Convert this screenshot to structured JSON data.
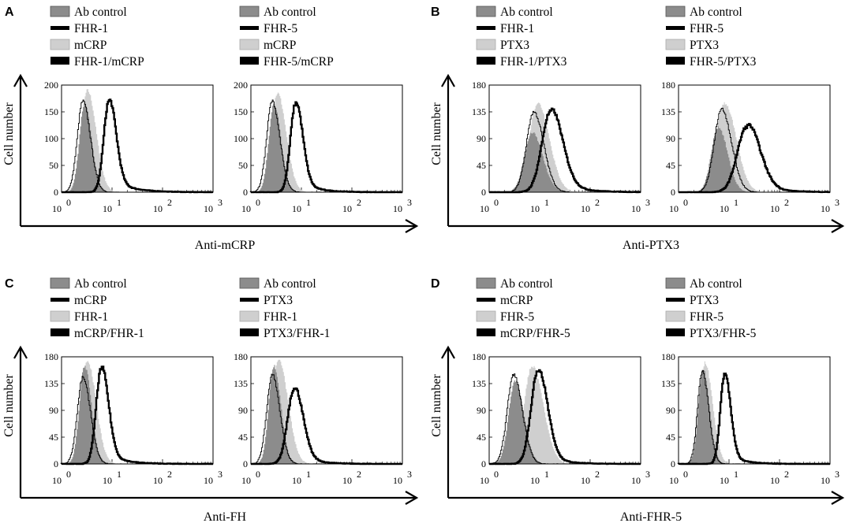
{
  "figure": {
    "y_axis_label": "Cell number",
    "ab_control_color": "#8c8c8c",
    "single_color": "#cfcfcf",
    "line_color": "#000000"
  },
  "chart_data": [
    {
      "panel": "A",
      "type": "histogram",
      "xlabel": "Anti-mCRP",
      "ylabel": "Cell number",
      "plots": [
        {
          "legend": [
            "Ab control",
            "FHR-1",
            "mCRP",
            "FHR-1/mCRP"
          ],
          "x_scale": "log",
          "xlim": [
            1,
            1000
          ],
          "ylim": [
            0,
            200
          ],
          "yticks": [
            "0",
            "50",
            "100",
            "150",
            "200"
          ],
          "xtick_exponents": [
            "0",
            "1",
            "2",
            "3"
          ],
          "series": [
            {
              "name": "Ab control",
              "style": "filled",
              "peak_x": 2.8,
              "peak_y": 165,
              "width": 0.12
            },
            {
              "name": "FHR-1",
              "style": "thin line",
              "peak_x": 2.6,
              "peak_y": 170,
              "width": 0.13
            },
            {
              "name": "mCRP",
              "style": "filled",
              "peak_x": 3.2,
              "peak_y": 190,
              "width": 0.15
            },
            {
              "name": "FHR-1/mCRP",
              "style": "thick line",
              "peak_x": 8.5,
              "peak_y": 170,
              "width": 0.12,
              "tail": 0.35
            }
          ]
        },
        {
          "legend": [
            "Ab control",
            "FHR-5",
            "mCRP",
            "FHR-5/mCRP"
          ],
          "x_scale": "log",
          "xlim": [
            1,
            1000
          ],
          "ylim": [
            0,
            200
          ],
          "yticks": [
            "0",
            "50",
            "100",
            "150",
            "200"
          ],
          "xtick_exponents": [
            "0",
            "1",
            "2",
            "3"
          ],
          "series": [
            {
              "name": "Ab control",
              "style": "filled",
              "peak_x": 2.8,
              "peak_y": 165,
              "width": 0.12
            },
            {
              "name": "FHR-5",
              "style": "thin line",
              "peak_x": 2.6,
              "peak_y": 170,
              "width": 0.13
            },
            {
              "name": "mCRP",
              "style": "filled",
              "peak_x": 3.3,
              "peak_y": 185,
              "width": 0.15
            },
            {
              "name": "FHR-5/mCRP",
              "style": "thick line",
              "peak_x": 7.5,
              "peak_y": 165,
              "width": 0.12,
              "tail": 0.3
            }
          ]
        }
      ]
    },
    {
      "panel": "B",
      "type": "histogram",
      "xlabel": "Anti-PTX3",
      "ylabel": "Cell number",
      "plots": [
        {
          "legend": [
            "Ab control",
            "FHR-1",
            "PTX3",
            "FHR-1/PTX3"
          ],
          "x_scale": "log",
          "xlim": [
            1,
            1000
          ],
          "ylim": [
            0,
            180
          ],
          "yticks": [
            "0",
            "45",
            "90",
            "135",
            "180"
          ],
          "xtick_exponents": [
            "0",
            "1",
            "2",
            "3"
          ],
          "series": [
            {
              "name": "Ab control",
              "style": "filled",
              "peak_x": 7,
              "peak_y": 100,
              "width": 0.18
            },
            {
              "name": "FHR-1",
              "style": "thin line",
              "peak_x": 7.5,
              "peak_y": 135,
              "width": 0.17
            },
            {
              "name": "PTX3",
              "style": "filled",
              "peak_x": 9,
              "peak_y": 150,
              "width": 0.2
            },
            {
              "name": "FHR-1/PTX3",
              "style": "thick line",
              "peak_x": 16,
              "peak_y": 135,
              "width": 0.2,
              "tail": 0.4
            }
          ]
        },
        {
          "legend": [
            "Ab control",
            "FHR-5",
            "PTX3",
            "FHR-5/PTX3"
          ],
          "x_scale": "log",
          "xlim": [
            1,
            1000
          ],
          "ylim": [
            0,
            180
          ],
          "yticks": [
            "0",
            "45",
            "90",
            "135",
            "180"
          ],
          "xtick_exponents": [
            "0",
            "1",
            "2",
            "3"
          ],
          "series": [
            {
              "name": "Ab control",
              "style": "filled",
              "peak_x": 6,
              "peak_y": 110,
              "width": 0.16
            },
            {
              "name": "FHR-5",
              "style": "thin line",
              "peak_x": 7,
              "peak_y": 140,
              "width": 0.17
            },
            {
              "name": "PTX3",
              "style": "filled",
              "peak_x": 8,
              "peak_y": 150,
              "width": 0.2
            },
            {
              "name": "FHR-5/PTX3",
              "style": "thick line",
              "peak_x": 22,
              "peak_y": 110,
              "width": 0.22,
              "tail": 0.4
            }
          ]
        }
      ]
    },
    {
      "panel": "C",
      "type": "histogram",
      "xlabel": "Anti-FH",
      "ylabel": "Cell number",
      "plots": [
        {
          "legend": [
            "Ab control",
            "mCRP",
            "FHR-1",
            "mCRP/FHR-1"
          ],
          "x_scale": "log",
          "xlim": [
            1,
            1000
          ],
          "ylim": [
            0,
            180
          ],
          "yticks": [
            "0",
            "45",
            "90",
            "135",
            "180"
          ],
          "xtick_exponents": [
            "0",
            "1",
            "2",
            "3"
          ],
          "series": [
            {
              "name": "Ab control",
              "style": "filled",
              "peak_x": 2.8,
              "peak_y": 165,
              "width": 0.12
            },
            {
              "name": "mCRP",
              "style": "thin line",
              "peak_x": 2.6,
              "peak_y": 145,
              "width": 0.13
            },
            {
              "name": "FHR-1",
              "style": "filled",
              "peak_x": 3.2,
              "peak_y": 172,
              "width": 0.15
            },
            {
              "name": "mCRP/FHR-1",
              "style": "thick line",
              "peak_x": 6,
              "peak_y": 160,
              "width": 0.12,
              "tail": 0.3
            }
          ]
        },
        {
          "legend": [
            "Ab control",
            "PTX3",
            "FHR-1",
            "PTX3/FHR-1"
          ],
          "x_scale": "log",
          "xlim": [
            1,
            1000
          ],
          "ylim": [
            0,
            180
          ],
          "yticks": [
            "0",
            "45",
            "90",
            "135",
            "180"
          ],
          "xtick_exponents": [
            "0",
            "1",
            "2",
            "3"
          ],
          "series": [
            {
              "name": "Ab control",
              "style": "filled",
              "peak_x": 2.8,
              "peak_y": 165,
              "width": 0.12
            },
            {
              "name": "PTX3",
              "style": "thin line",
              "peak_x": 2.6,
              "peak_y": 150,
              "width": 0.13
            },
            {
              "name": "FHR-1",
              "style": "filled",
              "peak_x": 3.5,
              "peak_y": 175,
              "width": 0.16
            },
            {
              "name": "PTX3/FHR-1",
              "style": "thick line",
              "peak_x": 7,
              "peak_y": 125,
              "width": 0.15,
              "tail": 0.3
            }
          ]
        }
      ]
    },
    {
      "panel": "D",
      "type": "histogram",
      "xlabel": "Anti-FHR-5",
      "ylabel": "Cell number",
      "plots": [
        {
          "legend": [
            "Ab control",
            "mCRP",
            "FHR-5",
            "mCRP/FHR-5"
          ],
          "x_scale": "log",
          "xlim": [
            1,
            1000
          ],
          "ylim": [
            0,
            180
          ],
          "yticks": [
            "0",
            "45",
            "90",
            "135",
            "180"
          ],
          "xtick_exponents": [
            "0",
            "1",
            "2",
            "3"
          ],
          "series": [
            {
              "name": "Ab control",
              "style": "filled",
              "peak_x": 3.2,
              "peak_y": 140,
              "width": 0.15
            },
            {
              "name": "mCRP",
              "style": "thin line",
              "peak_x": 3.0,
              "peak_y": 150,
              "width": 0.15
            },
            {
              "name": "FHR-5",
              "style": "filled",
              "peak_x": 7,
              "peak_y": 165,
              "width": 0.19
            },
            {
              "name": "mCRP/FHR-5",
              "style": "thick line",
              "peak_x": 9,
              "peak_y": 155,
              "width": 0.16,
              "tail": 0.3
            }
          ]
        },
        {
          "legend": [
            "Ab control",
            "PTX3",
            "FHR-5",
            "PTX3/FHR-5"
          ],
          "x_scale": "log",
          "xlim": [
            1,
            1000
          ],
          "ylim": [
            0,
            180
          ],
          "yticks": [
            "0",
            "45",
            "90",
            "135",
            "180"
          ],
          "xtick_exponents": [
            "0",
            "1",
            "2",
            "3"
          ],
          "series": [
            {
              "name": "Ab control",
              "style": "filled",
              "peak_x": 3.0,
              "peak_y": 160,
              "width": 0.11
            },
            {
              "name": "PTX3",
              "style": "thin line",
              "peak_x": 2.9,
              "peak_y": 155,
              "width": 0.11
            },
            {
              "name": "FHR-5",
              "style": "filled",
              "peak_x": 3.3,
              "peak_y": 170,
              "width": 0.13
            },
            {
              "name": "PTX3/FHR-5",
              "style": "thick line",
              "peak_x": 8,
              "peak_y": 150,
              "width": 0.1,
              "tail": 0.25
            }
          ]
        }
      ]
    }
  ]
}
